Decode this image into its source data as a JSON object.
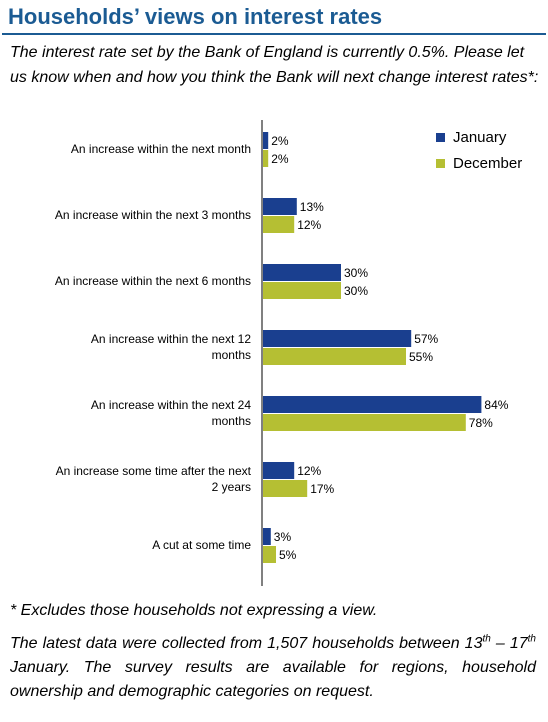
{
  "header": {
    "title": "Households’ views on interest rates",
    "question": "The interest rate set by the Bank of England is currently 0.5%. Please let us know when and how you think the Bank will next change interest rates*:"
  },
  "footer": {
    "footnote": "* Excludes those households not expressing a view.",
    "note": {
      "part1": "The latest data were collected from 1,507 households between 13",
      "sup1": "th",
      "part2": " – 17",
      "sup2": "th",
      "part3": " January. The survey results are available for regions, household ownership and demographic categories on request."
    }
  },
  "colors": {
    "title": "#1b5b93",
    "january": "#1a3f8f",
    "december": "#b5bf33"
  },
  "chart_data": {
    "type": "bar",
    "orientation": "horizontal",
    "categories": [
      "An increase within the next month",
      "An increase within the next 3 months",
      "An increase within the next 6 months",
      "An increase within the next 12 months",
      "An increase within the next 24 months",
      "An increase some time after the next 2 years",
      "A cut at some time"
    ],
    "series": [
      {
        "name": "January",
        "values": [
          2,
          13,
          30,
          57,
          84,
          12,
          3
        ]
      },
      {
        "name": "December",
        "values": [
          2,
          12,
          30,
          55,
          78,
          17,
          5
        ]
      }
    ],
    "value_suffix": "%",
    "xlim": [
      0,
      100
    ],
    "legend": "top-right",
    "grid": false
  }
}
